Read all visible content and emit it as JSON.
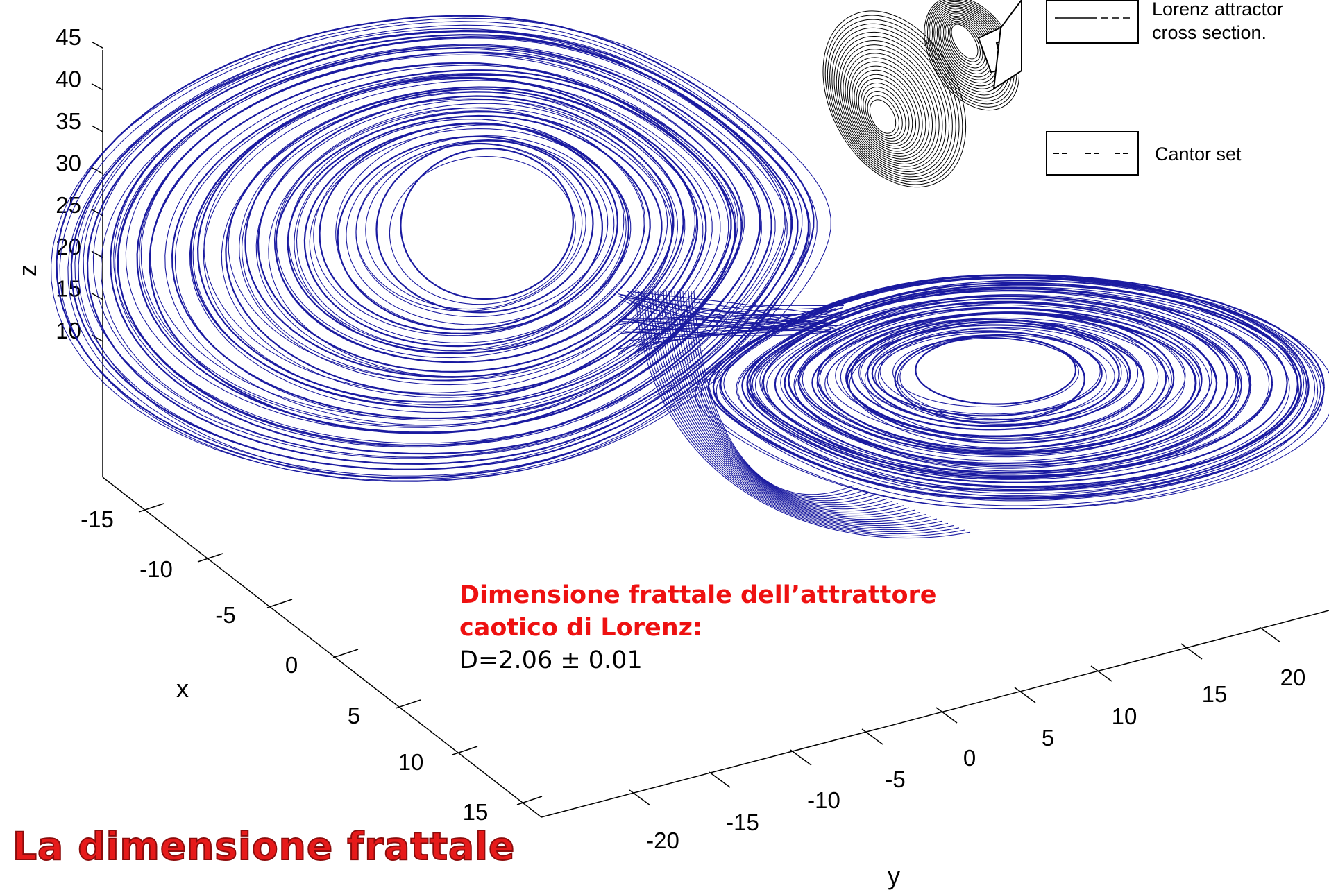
{
  "slide_title": "La dimensione frattale",
  "annotation": {
    "line1": "Dimensione frattale dell’attrattore",
    "line2": "caotico di Lorenz:",
    "line3": "D=2.06 ± 0.01"
  },
  "inset": {
    "label_attractor_line1": "Lorenz attractor",
    "label_attractor_line2": "cross section.",
    "label_cantor": "Cantor set"
  },
  "chart_data": {
    "type": "line",
    "title": "",
    "projection": "3d",
    "series": [
      {
        "description_color": "#1a1aa0"
      }
    ],
    "line_color": "#1a1aa0",
    "axes": {
      "z": {
        "label": "z",
        "ticks": [
          "10",
          "15",
          "20",
          "25",
          "30",
          "35",
          "40",
          "45"
        ],
        "range": [
          5,
          47
        ]
      },
      "x": {
        "label": "x",
        "ticks": [
          "-15",
          "-10",
          "-5",
          "0",
          "5",
          "10",
          "15"
        ],
        "range": [
          -20,
          20
        ]
      },
      "y": {
        "label": "y",
        "ticks": [
          "-20",
          "-15",
          "-10",
          "-5",
          "0",
          "5",
          "10",
          "15",
          "20"
        ],
        "range": [
          -25,
          25
        ]
      }
    },
    "attractor": {
      "left_lobe": {
        "center_x": -8.5,
        "center_z": 27,
        "loops": 60
      },
      "right_lobe": {
        "center_x": 8.5,
        "center_z": 22,
        "loops": 60
      }
    },
    "grid": false
  }
}
